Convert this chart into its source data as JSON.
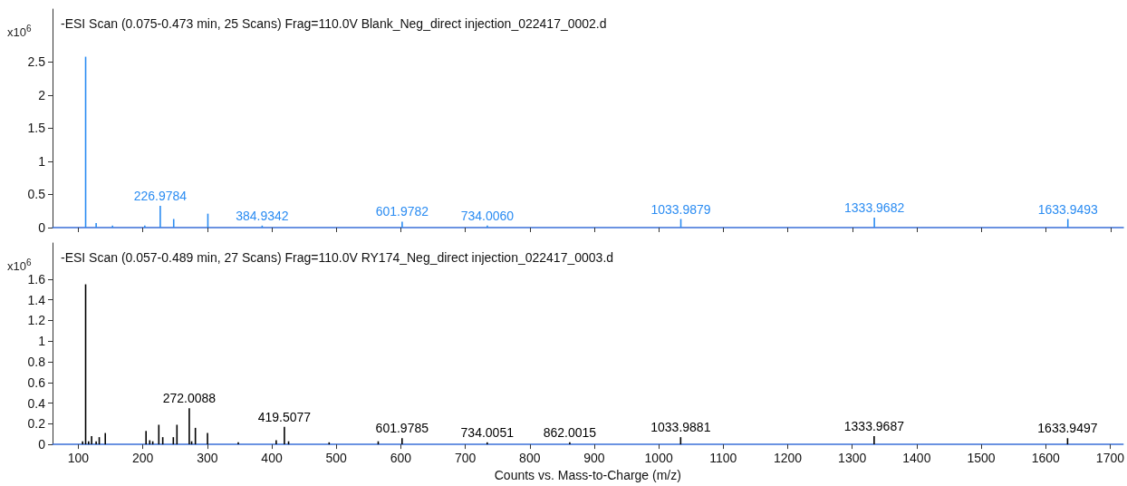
{
  "chart_data": [
    {
      "type": "bar",
      "title": "-ESI Scan (0.075-0.473 min, 25 Scans) Frag=110.0V Blank_Neg_direct injection_022417_0002.d",
      "ylabel": "x10$^{6}$",
      "color": "#2b8cf2",
      "x": [
        111.3,
        127.6,
        153,
        203,
        226.9784,
        247.8,
        300.8,
        384.9342,
        601.9782,
        734.006,
        1033.9879,
        1333.9682,
        1633.9493
      ],
      "values": [
        2.58,
        0.07,
        0.03,
        0.03,
        0.33,
        0.13,
        0.21,
        0.03,
        0.09,
        0.03,
        0.13,
        0.15,
        0.13
      ],
      "xlim": [
        60,
        1720
      ],
      "xticks": [
        100,
        200,
        300,
        400,
        500,
        600,
        700,
        800,
        900,
        1000,
        1100,
        1200,
        1300,
        1400,
        1500,
        1600,
        1700
      ],
      "ylim": [
        0,
        3.3
      ],
      "yticks": [
        0,
        0.5,
        1,
        1.5,
        2,
        2.5
      ],
      "tick_labels": "y",
      "annotations": [
        {
          "text": "226.9784",
          "x": 226.9784,
          "y": 0.33
        },
        {
          "text": "384.9342",
          "x": 384.9342,
          "y": 0.03
        },
        {
          "text": "601.9782",
          "x": 601.9782,
          "y": 0.09
        },
        {
          "text": "734.0060",
          "x": 734.006,
          "y": 0.03
        },
        {
          "text": "1033.9879",
          "x": 1033.9879,
          "y": 0.13
        },
        {
          "text": "1333.9682",
          "x": 1333.9682,
          "y": 0.15
        },
        {
          "text": "1633.9493",
          "x": 1633.9493,
          "y": 0.13
        }
      ]
    },
    {
      "type": "bar",
      "title": "-ESI Scan (0.057-0.489 min, 27 Scans) Frag=110.0V RY174_Neg_direct injection_022417_0003.d",
      "ylabel": "x10$^{6}$",
      "xlabel": "Counts vs. Mass-to-Charge (m/z)",
      "color": "#000000",
      "x": [
        106.6,
        111.3,
        115.9,
        120.6,
        127.6,
        132.4,
        141.8,
        205,
        210.7,
        215.4,
        224.8,
        230.9,
        247.3,
        252.9,
        272.0088,
        275.7,
        281.5,
        300.3,
        348,
        406.8,
        419.5077,
        426,
        488.9,
        565,
        601.9785,
        734.0051,
        862.0015,
        1033.9881,
        1333.9687,
        1633.9497
      ],
      "values": [
        0.03,
        1.55,
        0.03,
        0.08,
        0.03,
        0.07,
        0.11,
        0.13,
        0.04,
        0.03,
        0.19,
        0.07,
        0.07,
        0.19,
        0.35,
        0.03,
        0.16,
        0.11,
        0.02,
        0.04,
        0.17,
        0.03,
        0.02,
        0.03,
        0.06,
        0.02,
        0.02,
        0.07,
        0.08,
        0.06
      ],
      "xlim": [
        60,
        1720
      ],
      "xticks": [
        100,
        200,
        300,
        400,
        500,
        600,
        700,
        800,
        900,
        1000,
        1100,
        1200,
        1300,
        1400,
        1500,
        1600,
        1700
      ],
      "ylim": [
        0,
        1.95
      ],
      "yticks": [
        0,
        0.2,
        0.4,
        0.6,
        0.8,
        1,
        1.2,
        1.4,
        1.6
      ],
      "annotations": [
        {
          "text": "272.0088",
          "x": 272.0088,
          "y": 0.35
        },
        {
          "text": "419.5077",
          "x": 419.5077,
          "y": 0.17
        },
        {
          "text": "601.9785",
          "x": 601.9785,
          "y": 0.06
        },
        {
          "text": "734.0051",
          "x": 734.0051,
          "y": 0.02
        },
        {
          "text": "862.0015",
          "x": 862.0015,
          "y": 0.02
        },
        {
          "text": "1033.9881",
          "x": 1033.9881,
          "y": 0.07
        },
        {
          "text": "1333.9687",
          "x": 1333.9687,
          "y": 0.08
        },
        {
          "text": "1633.9497",
          "x": 1633.9497,
          "y": 0.06
        }
      ]
    }
  ]
}
